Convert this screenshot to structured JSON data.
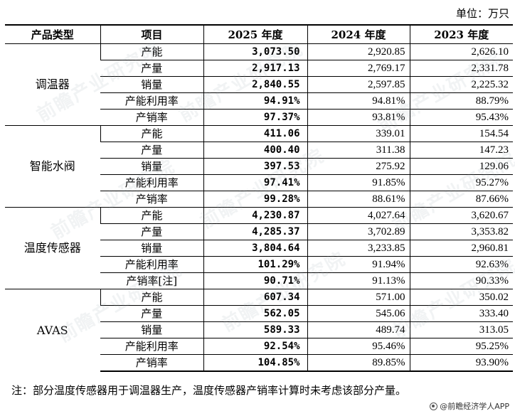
{
  "unit_label": "单位：万只",
  "headers": [
    "产品类型",
    "项目",
    "2025 年度",
    "2024 年度",
    "2023 年度"
  ],
  "groups": [
    {
      "category": "调温器",
      "rows": [
        {
          "item": "产能",
          "y2025": "3,073.50",
          "y2024": "2,920.85",
          "y2023": "2,626.10"
        },
        {
          "item": "产量",
          "y2025": "2,917.13",
          "y2024": "2,769.17",
          "y2023": "2,331.78"
        },
        {
          "item": "销量",
          "y2025": "2,840.55",
          "y2024": "2,597.85",
          "y2023": "2,225.32"
        },
        {
          "item": "产能利用率",
          "y2025": "94.91%",
          "y2024": "94.81%",
          "y2023": "88.79%"
        },
        {
          "item": "产销率",
          "y2025": "97.37%",
          "y2024": "93.81%",
          "y2023": "95.43%"
        }
      ]
    },
    {
      "category": "智能水阀",
      "rows": [
        {
          "item": "产能",
          "y2025": "411.06",
          "y2024": "339.01",
          "y2023": "154.54"
        },
        {
          "item": "产量",
          "y2025": "400.40",
          "y2024": "311.38",
          "y2023": "147.23"
        },
        {
          "item": "销量",
          "y2025": "397.53",
          "y2024": "275.92",
          "y2023": "129.06"
        },
        {
          "item": "产能利用率",
          "y2025": "97.41%",
          "y2024": "91.85%",
          "y2023": "95.27%"
        },
        {
          "item": "产销率",
          "y2025": "99.28%",
          "y2024": "88.61%",
          "y2023": "87.66%"
        }
      ]
    },
    {
      "category": "温度传感器",
      "rows": [
        {
          "item": "产能",
          "y2025": "4,230.87",
          "y2024": "4,027.64",
          "y2023": "3,620.67"
        },
        {
          "item": "产量",
          "y2025": "4,285.37",
          "y2024": "3,702.89",
          "y2023": "3,353.82"
        },
        {
          "item": "销量",
          "y2025": "3,804.64",
          "y2024": "3,233.85",
          "y2023": "2,960.81"
        },
        {
          "item": "产能利用率",
          "y2025": "101.29%",
          "y2024": "91.94%",
          "y2023": "92.63%"
        },
        {
          "item": "产销率[注]",
          "y2025": "90.71%",
          "y2024": "91.13%",
          "y2023": "90.33%"
        }
      ]
    },
    {
      "category": "AVAS",
      "rows": [
        {
          "item": "产能",
          "y2025": "607.34",
          "y2024": "571.00",
          "y2023": "350.02"
        },
        {
          "item": "产量",
          "y2025": "562.05",
          "y2024": "545.06",
          "y2023": "333.40"
        },
        {
          "item": "销量",
          "y2025": "589.33",
          "y2024": "489.74",
          "y2023": "313.05"
        },
        {
          "item": "产能利用率",
          "y2025": "92.54%",
          "y2024": "95.46%",
          "y2023": "95.25%"
        },
        {
          "item": "产销率",
          "y2025": "104.85%",
          "y2024": "89.85%",
          "y2023": "93.90%"
        }
      ]
    }
  ],
  "note": "注：部分温度传感器用于调温器生产，温度传感器产销率计算时未考虑该部分产量。",
  "footer": {
    "icon": "wechat-logo-icon",
    "text": "@前瞻经济学人APP"
  },
  "watermark_text": "前瞻产业研究院"
}
